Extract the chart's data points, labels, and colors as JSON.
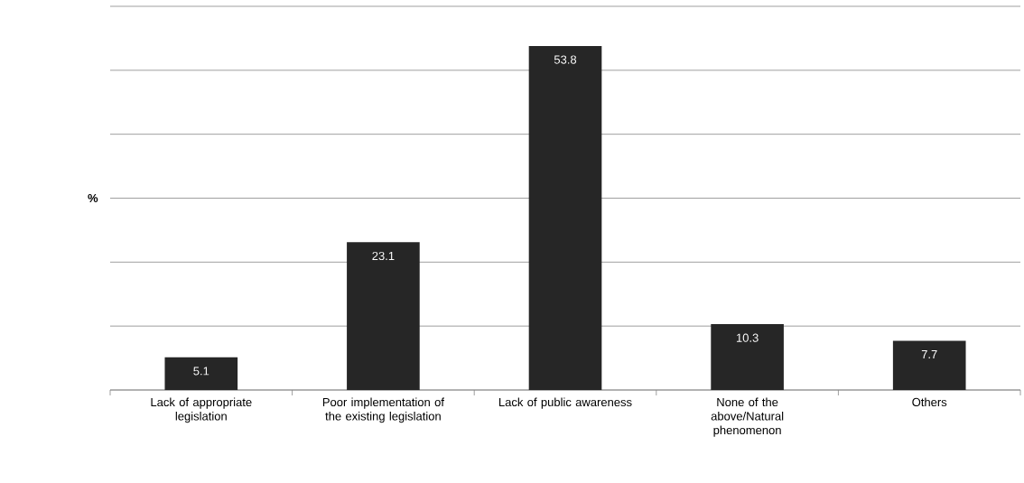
{
  "chart_data": {
    "type": "bar",
    "ylabel": "%",
    "categories": [
      "Lack of appropriate legislation",
      "Poor implementation of the existing legislation",
      "Lack of public awareness",
      "None of the above/Natural phenomenon",
      "Others"
    ],
    "values": [
      5.1,
      23.1,
      53.8,
      10.3,
      7.7
    ],
    "color": "#262626",
    "data_labels": true,
    "ylim": [
      0,
      60
    ],
    "yticks": [
      {
        "value": 0,
        "label": null
      },
      {
        "value": 10,
        "label": null
      },
      {
        "value": 20,
        "label": null
      },
      {
        "value": 30,
        "label": null
      },
      {
        "value": 40,
        "label": null
      },
      {
        "value": 50,
        "label": null
      },
      {
        "value": 60,
        "label": null
      }
    ],
    "tick_labels": "x",
    "grid": "y"
  }
}
